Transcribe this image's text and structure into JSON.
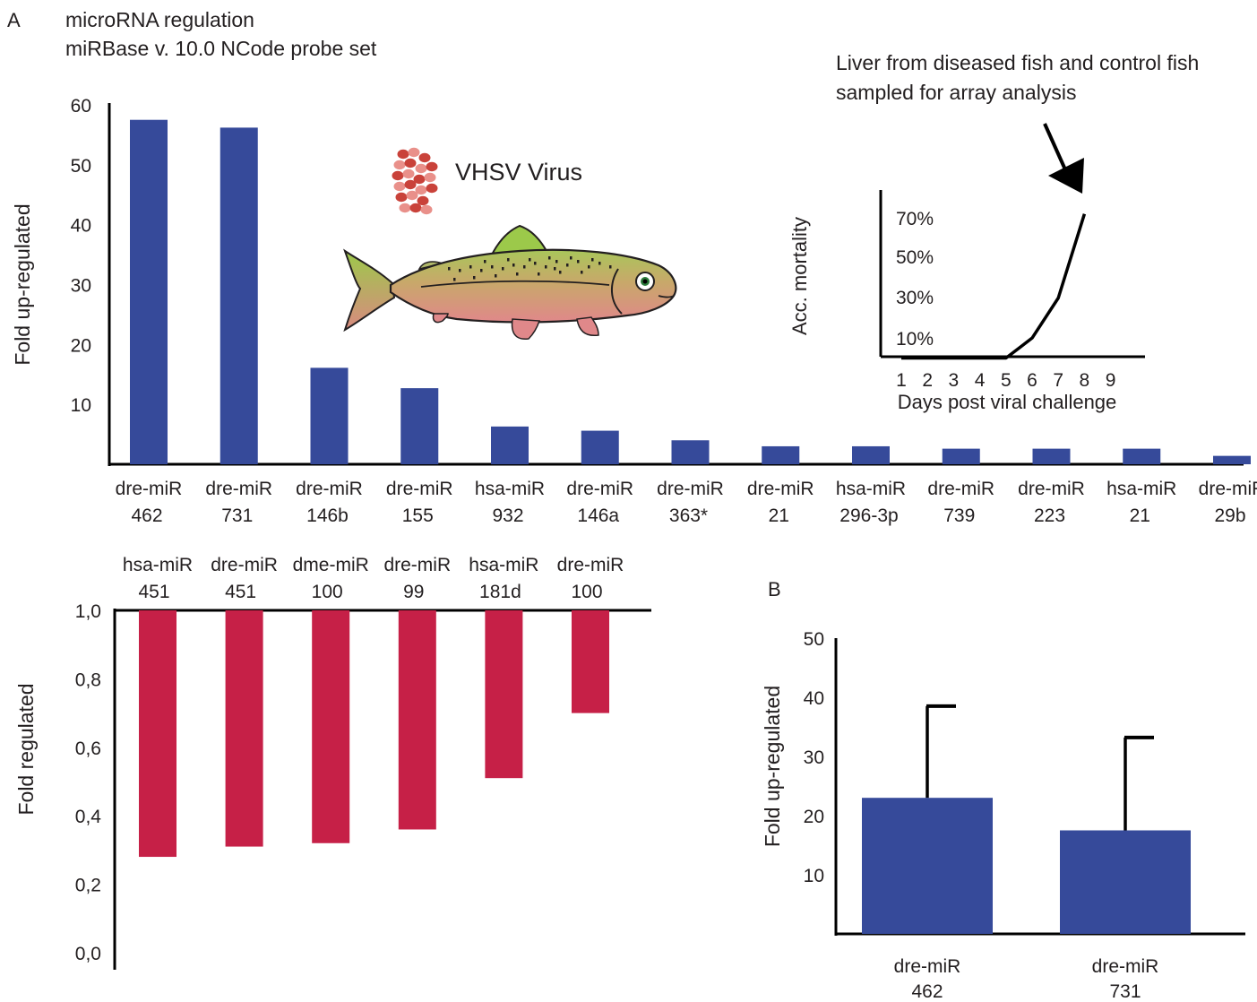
{
  "panel_a": {
    "letter": "A",
    "title_line1": "microRNA regulation",
    "title_line2": "miRBase v. 10.0 NCode probe set",
    "virus_label": "VHSV Virus",
    "annotation_line1": "Liver from diseased fish and control fish",
    "annotation_line2": "sampled for array analysis"
  },
  "panel_b": {
    "letter": "B"
  },
  "colors": {
    "up": "#364a9a",
    "down": "#c62047",
    "axis": "#000000"
  },
  "icons": {
    "virus": "virus-particle-cluster-icon",
    "fish": "trout-fish-icon",
    "arrow": "arrow-down-icon"
  },
  "chart_data": [
    {
      "type": "bar",
      "ylabel": "Fold up-regulated",
      "ylim": [
        0,
        60
      ],
      "yticks": [
        10,
        20,
        30,
        40,
        50,
        60
      ],
      "categories": [
        [
          "dre-miR",
          "462"
        ],
        [
          "dre-miR",
          "731"
        ],
        [
          "dre-miR",
          "146b"
        ],
        [
          "dre-miR",
          "155"
        ],
        [
          "hsa-miR",
          "932"
        ],
        [
          "dre-miR",
          "146a"
        ],
        [
          "dre-miR",
          "363*"
        ],
        [
          "dre-miR",
          "21"
        ],
        [
          "hsa-miR",
          "296-3p"
        ],
        [
          "dre-miR",
          "739"
        ],
        [
          "dre-miR",
          "223"
        ],
        [
          "hsa-miR",
          "21"
        ],
        [
          "dre-miR",
          "29b"
        ]
      ],
      "values": [
        57.5,
        56.2,
        16.1,
        12.7,
        6.3,
        5.6,
        4.0,
        3.0,
        3.0,
        2.6,
        2.6,
        2.6,
        1.4
      ]
    },
    {
      "type": "line",
      "ylabel": "Acc. mortality",
      "xlabel": "Days post viral challenge",
      "xticks": [
        "1",
        "2",
        "3",
        "4",
        "5",
        "6",
        "7",
        "8",
        "9"
      ],
      "yticks": [
        "10%",
        "30%",
        "50%",
        "70%"
      ],
      "x": [
        1,
        2,
        3,
        4,
        5,
        5.5,
        6,
        7,
        8
      ],
      "y": [
        0,
        0,
        0,
        0,
        0,
        5,
        10,
        30,
        72
      ]
    },
    {
      "type": "bar",
      "ylabel": "Fold regulated",
      "ylim": [
        0,
        1.0
      ],
      "yticks": [
        "0,0",
        "0,2",
        "0,4",
        "0,6",
        "0,8",
        "1,0"
      ],
      "tick_values": [
        0,
        0.2,
        0.4,
        0.6,
        0.8,
        1.0
      ],
      "categories": [
        [
          "hsa-miR",
          "451"
        ],
        [
          "dre-miR",
          "451"
        ],
        [
          "dme-miR",
          "100"
        ],
        [
          "dre-miR",
          "99"
        ],
        [
          "hsa-miR",
          "181d"
        ],
        [
          "dre-miR",
          "100"
        ]
      ],
      "values": [
        0.28,
        0.31,
        0.32,
        0.36,
        0.51,
        0.7
      ]
    },
    {
      "type": "bar",
      "ylabel": "Fold up-regulated",
      "ylim": [
        0,
        50
      ],
      "yticks": [
        10,
        20,
        30,
        40,
        50
      ],
      "categories": [
        [
          "dre-miR",
          "462"
        ],
        [
          "dre-miR",
          "731"
        ]
      ],
      "values": [
        23.0,
        17.5
      ],
      "error_upper": [
        38.5,
        33.2
      ]
    }
  ]
}
